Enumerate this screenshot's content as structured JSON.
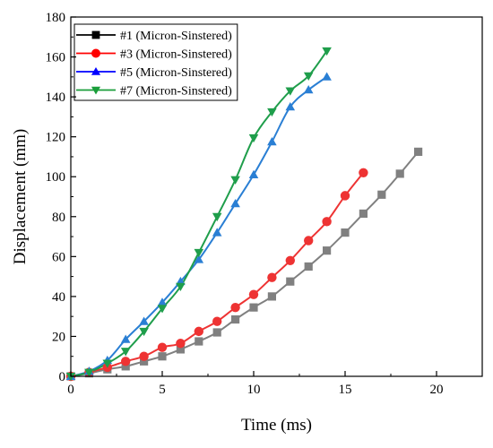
{
  "chart_data": {
    "type": "line",
    "xlabel": "Time (ms)",
    "ylabel": "Displacement (mm)",
    "xlim": [
      0,
      22.5
    ],
    "ylim": [
      0,
      180
    ],
    "xticks": [
      0,
      5,
      10,
      15,
      20
    ],
    "yticks": [
      0,
      20,
      40,
      60,
      80,
      100,
      120,
      140,
      160,
      180
    ],
    "grid": false,
    "legend_position": "top-left",
    "series": [
      {
        "name": "#1 (Micron-Sinstered)",
        "color": "#000000",
        "line_color": "#808080",
        "marker": "square",
        "x": [
          0,
          1,
          2,
          3,
          4,
          5,
          6,
          7,
          8,
          9,
          10,
          11,
          12,
          13,
          14,
          15,
          16,
          17,
          18,
          19
        ],
        "y": [
          0,
          1.5,
          3.5,
          5,
          7.5,
          10,
          13.5,
          17.5,
          22,
          28.5,
          34.5,
          40,
          47.5,
          55,
          63,
          72,
          81.5,
          91,
          101.5,
          112.5
        ]
      },
      {
        "name": "#3 (Micron-Sinstered)",
        "color": "#ff0000",
        "line_color": "#ee3333",
        "marker": "circle",
        "x": [
          0,
          1,
          2,
          3,
          4,
          5,
          6,
          7,
          8,
          9,
          10,
          11,
          12,
          13,
          14,
          15,
          16
        ],
        "y": [
          0,
          2,
          4.5,
          7.5,
          10,
          14.5,
          16.5,
          22.5,
          27.5,
          34.5,
          41,
          49.5,
          58,
          68,
          77.5,
          90.5,
          102
        ]
      },
      {
        "name": "#5 (Micron-Sinstered)",
        "color": "#0000ff",
        "line_color": "#2a7fd4",
        "marker": "triangle-up",
        "x": [
          0,
          1,
          2,
          3,
          4,
          5,
          6,
          7,
          8,
          9,
          10,
          11,
          12,
          13,
          14
        ],
        "y": [
          0,
          2.5,
          8,
          18.5,
          27.5,
          37,
          47.5,
          58.5,
          72,
          86.5,
          101,
          117.5,
          135,
          143.5,
          150
        ]
      },
      {
        "name": "#7 (Micron-Sinstered)",
        "color": "#1a9e3a",
        "line_color": "#1f9e4b",
        "marker": "triangle-down",
        "x": [
          0,
          1,
          2,
          3,
          4,
          5,
          6,
          7,
          8,
          9,
          10,
          11,
          12,
          13,
          14
        ],
        "y": [
          0,
          2,
          6.5,
          12.5,
          22.5,
          34,
          45,
          62,
          80,
          98.5,
          119.5,
          132.5,
          143,
          150.5,
          163
        ]
      }
    ]
  }
}
